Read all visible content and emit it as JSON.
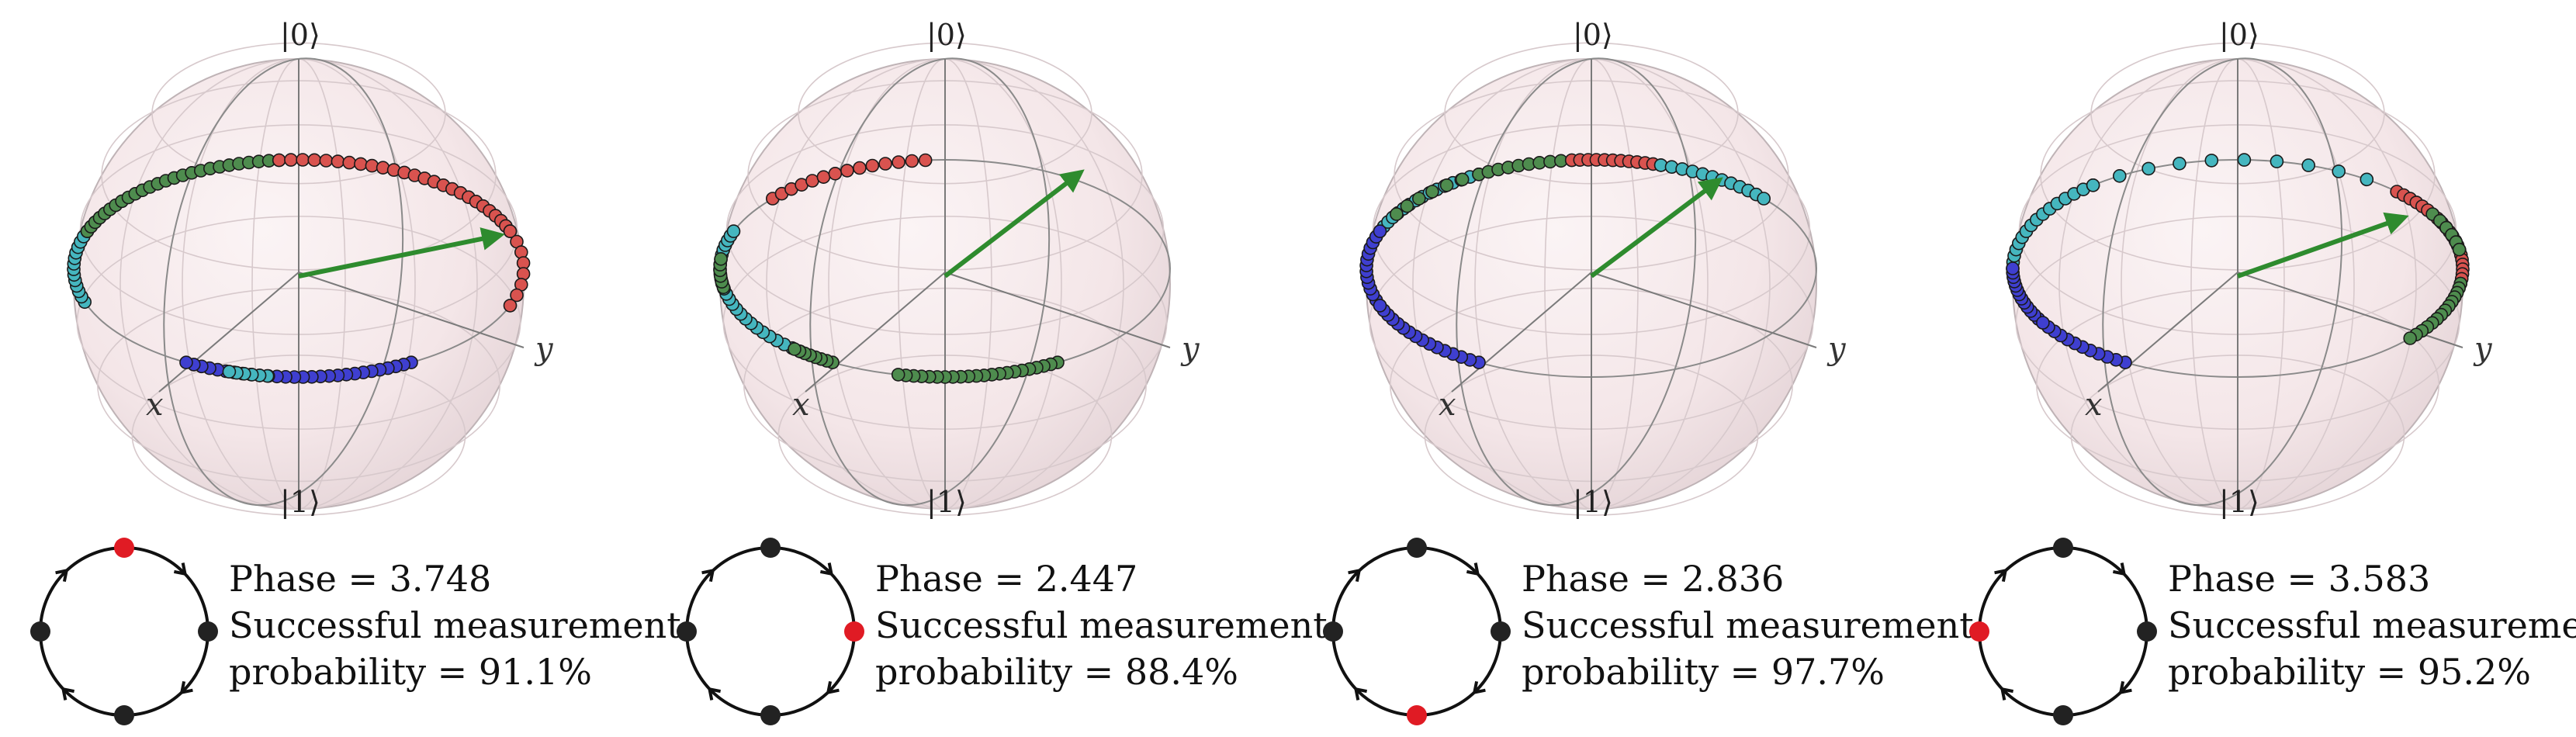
{
  "labels": {
    "ket0": "|0⟩",
    "ket1": "|1⟩",
    "x_axis": "x",
    "y_axis": "y"
  },
  "colors": {
    "sphere_fill": "#f4e6e8",
    "arrow": "#2e8b2e",
    "highlight_node": "#e01b24",
    "node": "#222222",
    "point_red": "#d9534f",
    "point_green": "#4e8c4e",
    "point_cyan": "#45b6bf",
    "point_blue": "#3f3fd0"
  },
  "icons": {
    "ring_node": "dot-icon",
    "ring_arrow": "arrowhead-icon"
  },
  "panels": [
    {
      "phase_line": "Phase = 3.748",
      "success_line": "Successful measurement",
      "prob_line": "probability = 91.1%",
      "phase": 3.748,
      "probability_percent": 91.1,
      "highlighted_node": "top"
    },
    {
      "phase_line": "Phase = 2.447",
      "success_line": "Successful measurement",
      "prob_line": "probability = 88.4%",
      "phase": 2.447,
      "probability_percent": 88.4,
      "highlighted_node": "right"
    },
    {
      "phase_line": "Phase = 2.836",
      "success_line": "Successful measurement",
      "prob_line": "probability = 97.7%",
      "phase": 2.836,
      "probability_percent": 97.7,
      "highlighted_node": "bottom"
    },
    {
      "phase_line": "Phase = 3.583",
      "success_line": "Successful measurement",
      "prob_line": "probability = 95.2%",
      "phase": 3.583,
      "probability_percent": 95.2,
      "highlighted_node": "left"
    }
  ]
}
